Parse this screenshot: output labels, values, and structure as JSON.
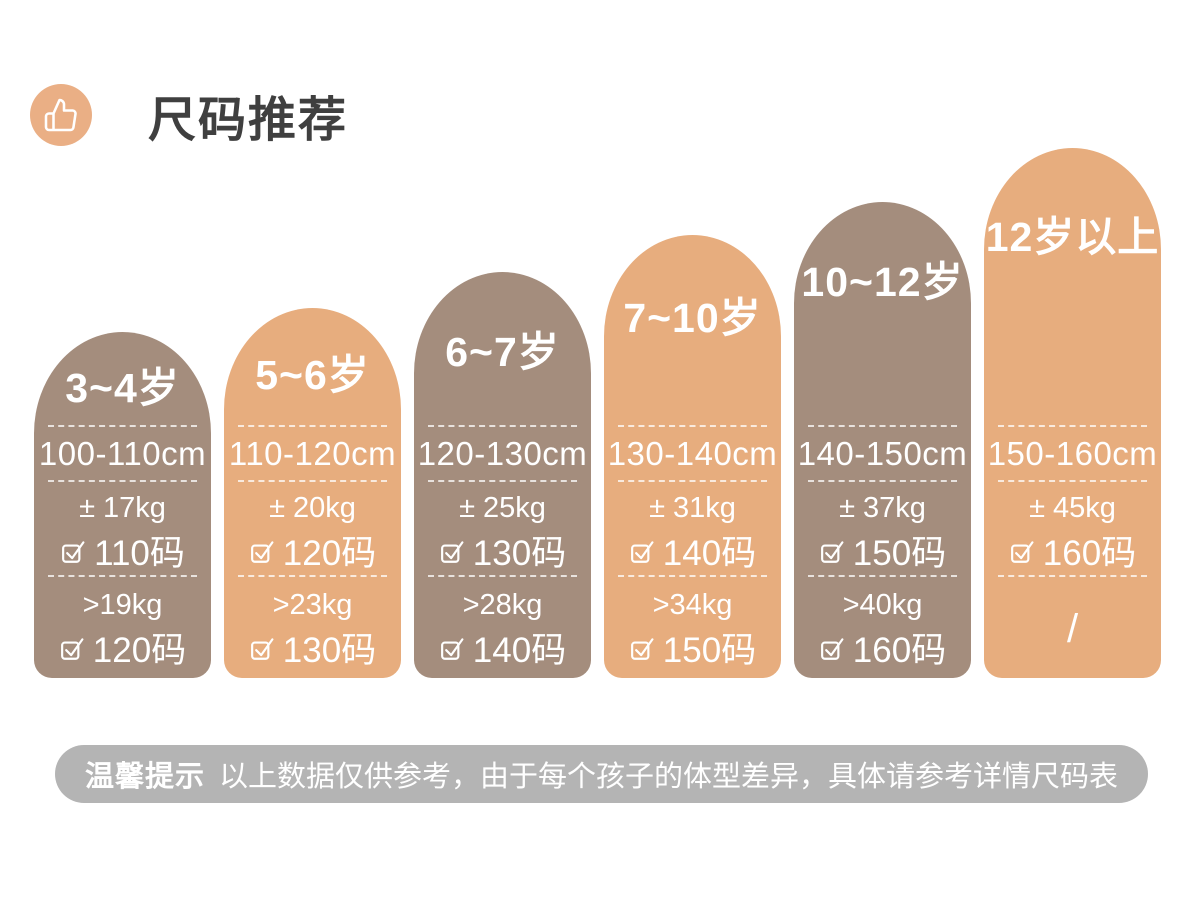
{
  "header": {
    "title": "尺码推荐",
    "icon": "thumbs-up"
  },
  "columns": [
    {
      "age": "3~4岁",
      "height_range": "100-110cm",
      "rows": [
        {
          "weight": "± 17kg",
          "size": "110码"
        },
        {
          "weight": ">19kg",
          "size": "120码"
        }
      ]
    },
    {
      "age": "5~6岁",
      "height_range": "110-120cm",
      "rows": [
        {
          "weight": "± 20kg",
          "size": "120码"
        },
        {
          "weight": ">23kg",
          "size": "130码"
        }
      ]
    },
    {
      "age": "6~7岁",
      "height_range": "120-130cm",
      "rows": [
        {
          "weight": "± 25kg",
          "size": "130码"
        },
        {
          "weight": ">28kg",
          "size": "140码"
        }
      ]
    },
    {
      "age": "7~10岁",
      "height_range": "130-140cm",
      "rows": [
        {
          "weight": "± 31kg",
          "size": "140码"
        },
        {
          "weight": ">34kg",
          "size": "150码"
        }
      ]
    },
    {
      "age": "10~12岁",
      "height_range": "140-150cm",
      "rows": [
        {
          "weight": "± 37kg",
          "size": "150码"
        },
        {
          "weight": ">40kg",
          "size": "160码"
        }
      ]
    },
    {
      "age": "12岁以上",
      "height_range": "150-160cm",
      "rows": [
        {
          "weight": "± 45kg",
          "size": "160码"
        }
      ],
      "placeholder": "/"
    }
  ],
  "footer": {
    "label": "温馨提示",
    "text": "以上数据仅供参考，由于每个孩子的体型差异，具体请参考详情尺码表"
  },
  "colors": {
    "column_taupe": "#a48d7d",
    "column_orange": "#e7ad7e",
    "badge_orange": "#eaaf85",
    "banner_gray": "#b4b4b4",
    "title_text": "#3f3f3f",
    "column_text": "#ffffff"
  },
  "chart_data": {
    "type": "table",
    "title": "尺码推荐",
    "rows": [
      {
        "age_group": "3~4岁",
        "height_cm": "100-110cm",
        "weight_1": "± 17kg",
        "size_1": "110码",
        "weight_2": ">19kg",
        "size_2": "120码"
      },
      {
        "age_group": "5~6岁",
        "height_cm": "110-120cm",
        "weight_1": "± 20kg",
        "size_1": "120码",
        "weight_2": ">23kg",
        "size_2": "130码"
      },
      {
        "age_group": "6~7岁",
        "height_cm": "120-130cm",
        "weight_1": "± 25kg",
        "size_1": "130码",
        "weight_2": ">28kg",
        "size_2": "140码"
      },
      {
        "age_group": "7~10岁",
        "height_cm": "130-140cm",
        "weight_1": "± 31kg",
        "size_1": "140码",
        "weight_2": ">34kg",
        "size_2": "150码"
      },
      {
        "age_group": "10~12岁",
        "height_cm": "140-150cm",
        "weight_1": "± 37kg",
        "size_1": "150码",
        "weight_2": ">40kg",
        "size_2": "160码"
      },
      {
        "age_group": "12岁以上",
        "height_cm": "150-160cm",
        "weight_1": "± 45kg",
        "size_1": "160码",
        "weight_2": "/",
        "size_2": "/"
      }
    ],
    "note": "以上数据仅供参考，由于每个孩子的体型差异，具体请参考详情尺码表",
    "layout_hint": "six bottom-aligned arch-top pillars of increasing height, alternating taupe/orange"
  }
}
